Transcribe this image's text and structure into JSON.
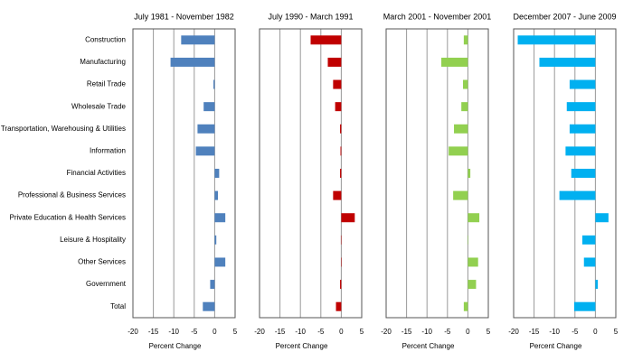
{
  "chart_data": [
    {
      "type": "bar",
      "orientation": "horizontal",
      "title": "July 1981 - November 1982",
      "xlabel": "Percent Change",
      "categories": [
        "Construction",
        "Manufacturing",
        "Retail Trade",
        "Wholesale Trade",
        "Transportation, Warehousing  & Utilities",
        "Information",
        "Financial Activities",
        "Professional  & Business Services",
        "Private Education & Health Services",
        "Leisure & Hospitality",
        "Other Services",
        "Government",
        "Total"
      ],
      "values": [
        -8.2,
        -10.8,
        -0.3,
        -2.7,
        -4.2,
        -4.6,
        1.1,
        0.8,
        2.6,
        0.4,
        2.6,
        -1.1,
        -2.9
      ],
      "color": "#4f81bd",
      "xlim": [
        -20,
        5
      ],
      "xticks": [
        -20,
        -15,
        -10,
        -5,
        0,
        5
      ],
      "grid": true
    },
    {
      "type": "bar",
      "orientation": "horizontal",
      "title": "July 1990 - March 1991",
      "xlabel": "Percent Change",
      "values": [
        -7.5,
        -3.3,
        -2.0,
        -1.5,
        -0.3,
        -0.2,
        -0.3,
        -2.0,
        3.3,
        -0.1,
        0.1,
        -0.3,
        -1.3
      ],
      "color": "#c00000",
      "xlim": [
        -20,
        5
      ],
      "xticks": [
        -20,
        -15,
        -10,
        -5,
        0,
        5
      ],
      "grid": true
    },
    {
      "type": "bar",
      "orientation": "horizontal",
      "title": "March 2001 - November 2001",
      "xlabel": "Percent Change",
      "values": [
        -1.0,
        -6.5,
        -1.2,
        -1.6,
        -3.4,
        -4.7,
        0.6,
        -3.6,
        2.8,
        0.1,
        2.5,
        2.0,
        -1.0
      ],
      "color": "#92d050",
      "xlim": [
        -20,
        5
      ],
      "xticks": [
        -20,
        -15,
        -10,
        -5,
        0,
        5
      ],
      "grid": true
    },
    {
      "type": "bar",
      "orientation": "horizontal",
      "title": "December 2007 - June 2009",
      "xlabel": "Percent Change",
      "values": [
        -19.0,
        -13.7,
        -6.3,
        -7.0,
        -6.3,
        -7.3,
        -5.9,
        -8.8,
        3.2,
        -3.2,
        -2.8,
        0.6,
        -5.2
      ],
      "color": "#00b0f0",
      "xlim": [
        -20,
        5
      ],
      "xticks": [
        -20,
        -15,
        -10,
        -5,
        0,
        5
      ],
      "grid": true
    }
  ]
}
